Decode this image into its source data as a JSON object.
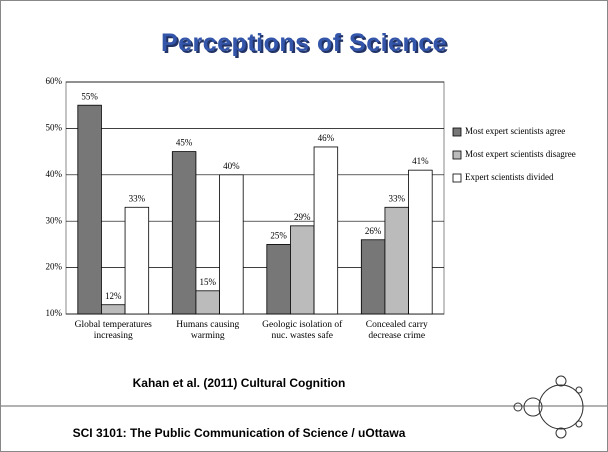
{
  "title": "Perceptions of Science",
  "chart_data": {
    "type": "bar",
    "categories": [
      "Global temperatures increasing",
      "Humans causing warming",
      "Geologic isolation of nuc. wastes safe",
      "Concealed carry decrease crime"
    ],
    "series": [
      {
        "name": "Most expert scientists agree",
        "color": "#777777",
        "values": [
          55,
          45,
          25,
          26
        ],
        "value_labels": [
          "55%",
          "45%",
          "25%",
          "26%"
        ]
      },
      {
        "name": "Most expert scientists disagree",
        "color": "#bbbbbb",
        "values": [
          12,
          15,
          29,
          33
        ],
        "value_labels": [
          "12%",
          "15%",
          "29%",
          "33%"
        ]
      },
      {
        "name": "Expert scientists divided",
        "color": "#ffffff",
        "values": [
          33,
          40,
          46,
          41
        ],
        "value_labels": [
          "33%",
          "40%",
          "46%",
          "41%"
        ]
      }
    ],
    "ylim": [
      10,
      60
    ],
    "yticks": [
      {
        "value": 10,
        "label": "10%"
      },
      {
        "value": 20,
        "label": "20%"
      },
      {
        "value": 30,
        "label": "30%"
      },
      {
        "value": 40,
        "label": "40%"
      },
      {
        "value": 50,
        "label": "50%"
      },
      {
        "value": 60,
        "label": "60%"
      }
    ],
    "grid": true,
    "legend": "right"
  },
  "citation": "Kahan et al. (2011) Cultural Cognition",
  "footer": "SCI 3101: The Public Communication of Science / uOttawa"
}
